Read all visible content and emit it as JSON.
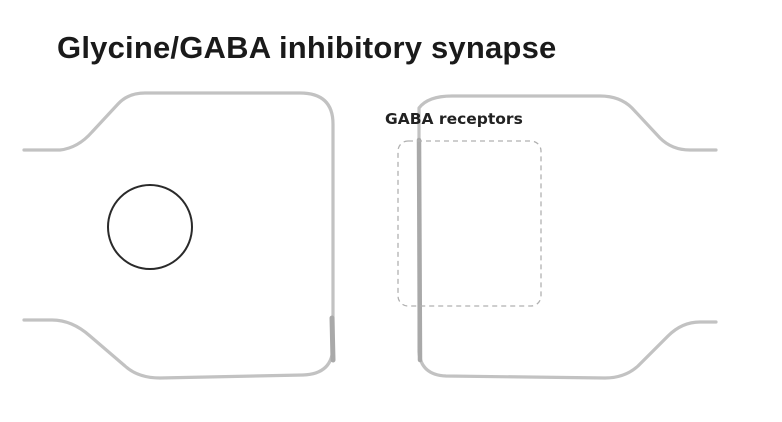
{
  "title": "Glycine/GABA inhibitory synapse",
  "receptor_label": "GABA receptors",
  "colors": {
    "membrane": "#c2c2c2",
    "membrane_thick": "#a9a9a9",
    "nucleus_stroke": "#2a2a2a",
    "dashed_box": "#b0b0b0",
    "title_text": "#1a1a1a"
  }
}
